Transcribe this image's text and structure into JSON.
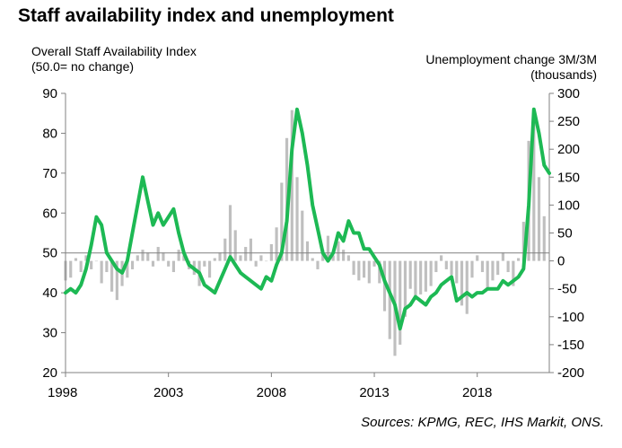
{
  "title": "Staff availability index and unemployment",
  "left_axis_label": [
    "Overall Staff Availability Index",
    "(50.0= no change)"
  ],
  "right_axis_label": [
    "Unemployment  change 3M/3M",
    "(thousands)"
  ],
  "source": "Sources: KPMG, REC, IHS Markit, ONS.",
  "colors": {
    "line": "#1db954",
    "bars": "#bfbfbf",
    "axis": "#808080"
  },
  "chart_data": {
    "type": "line+bar",
    "title": "Staff availability index and unemployment",
    "x_ticks": [
      "1998",
      "2003",
      "2008",
      "2013",
      "2018"
    ],
    "x_tick_values": [
      1998,
      2003,
      2008,
      2013,
      2018
    ],
    "xlim": [
      1998,
      2021.5
    ],
    "y_left": {
      "label": "Overall Staff Availability Index (50.0= no change)",
      "lim": [
        20,
        90
      ],
      "ticks": [
        20,
        30,
        40,
        50,
        60,
        70,
        80,
        90
      ]
    },
    "y_right": {
      "label": "Unemployment  change 3M/3M (thousands)",
      "lim": [
        -200,
        300
      ],
      "ticks": [
        -200,
        -150,
        -100,
        -50,
        0,
        50,
        100,
        150,
        200,
        250,
        300
      ]
    },
    "series": [
      {
        "kind": "line",
        "axis": "left",
        "x": [
          1998,
          1998.25,
          1998.5,
          1998.75,
          1999,
          1999.25,
          1999.5,
          1999.75,
          2000,
          2000.25,
          2000.5,
          2000.75,
          2001,
          2001.25,
          2001.5,
          2001.75,
          2002,
          2002.25,
          2002.5,
          2002.75,
          2003,
          2003.25,
          2003.5,
          2003.75,
          2004,
          2004.25,
          2004.5,
          2004.75,
          2005,
          2005.25,
          2005.5,
          2005.75,
          2006,
          2006.25,
          2006.5,
          2006.75,
          2007,
          2007.25,
          2007.5,
          2007.75,
          2008,
          2008.25,
          2008.5,
          2008.75,
          2009,
          2009.25,
          2009.5,
          2009.75,
          2010,
          2010.25,
          2010.5,
          2010.75,
          2011,
          2011.25,
          2011.5,
          2011.75,
          2012,
          2012.25,
          2012.5,
          2012.75,
          2013,
          2013.25,
          2013.5,
          2013.75,
          2014,
          2014.25,
          2014.5,
          2014.75,
          2015,
          2015.25,
          2015.5,
          2015.75,
          2016,
          2016.25,
          2016.5,
          2016.75,
          2017,
          2017.25,
          2017.5,
          2017.75,
          2018,
          2018.25,
          2018.5,
          2018.75,
          2019,
          2019.25,
          2019.5,
          2019.75,
          2020,
          2020.25,
          2020.5,
          2020.75,
          2021,
          2021.25,
          2021.5
        ],
        "values": [
          40,
          41,
          40,
          42,
          46,
          52,
          59,
          57,
          50,
          48,
          46,
          45,
          48,
          55,
          62,
          69,
          63,
          57,
          60,
          57,
          59,
          61,
          55,
          50,
          47,
          46,
          45,
          42,
          41,
          40,
          43,
          46,
          49,
          47,
          45,
          44,
          43,
          42,
          41,
          44,
          43,
          47,
          50,
          58,
          76,
          86,
          80,
          72,
          62,
          56,
          50,
          48,
          50,
          55,
          53,
          58,
          55,
          55,
          51,
          51,
          49,
          47,
          43,
          40,
          37,
          31,
          36,
          37,
          39,
          38,
          37,
          39,
          40,
          42,
          43,
          44,
          38,
          39,
          40,
          39,
          40,
          40,
          41,
          41,
          41,
          43,
          42,
          43,
          44,
          46,
          62,
          86,
          80,
          72,
          70
        ]
      },
      {
        "kind": "bar",
        "axis": "right",
        "x": [
          1998,
          1998.25,
          1998.5,
          1998.75,
          1999,
          1999.25,
          1999.5,
          1999.75,
          2000,
          2000.25,
          2000.5,
          2000.75,
          2001,
          2001.25,
          2001.5,
          2001.75,
          2002,
          2002.25,
          2002.5,
          2002.75,
          2003,
          2003.25,
          2003.5,
          2003.75,
          2004,
          2004.25,
          2004.5,
          2004.75,
          2005,
          2005.25,
          2005.5,
          2005.75,
          2006,
          2006.25,
          2006.5,
          2006.75,
          2007,
          2007.25,
          2007.5,
          2007.75,
          2008,
          2008.25,
          2008.5,
          2008.75,
          2009,
          2009.25,
          2009.5,
          2009.75,
          2010,
          2010.25,
          2010.5,
          2010.75,
          2011,
          2011.25,
          2011.5,
          2011.75,
          2012,
          2012.25,
          2012.5,
          2012.75,
          2013,
          2013.25,
          2013.5,
          2013.75,
          2014,
          2014.25,
          2014.5,
          2014.75,
          2015,
          2015.25,
          2015.5,
          2015.75,
          2016,
          2016.25,
          2016.5,
          2016.75,
          2017,
          2017.25,
          2017.5,
          2017.75,
          2018,
          2018.25,
          2018.5,
          2018.75,
          2019,
          2019.25,
          2019.5,
          2019.75,
          2020,
          2020.25,
          2020.5,
          2020.75,
          2021,
          2021.25
        ],
        "values": [
          -35,
          -30,
          5,
          -20,
          10,
          -15,
          0,
          -40,
          -20,
          -55,
          -70,
          -45,
          -30,
          -15,
          10,
          20,
          15,
          -10,
          25,
          15,
          -10,
          -20,
          20,
          10,
          -15,
          -25,
          -45,
          -10,
          -30,
          5,
          15,
          40,
          100,
          55,
          10,
          25,
          40,
          -10,
          10,
          0,
          30,
          60,
          140,
          220,
          270,
          150,
          90,
          35,
          5,
          -15,
          20,
          45,
          10,
          35,
          20,
          10,
          -25,
          -35,
          -30,
          -40,
          -10,
          -40,
          -90,
          -140,
          -170,
          -150,
          -100,
          -50,
          -70,
          -60,
          -55,
          -45,
          -20,
          10,
          -15,
          -25,
          -40,
          -80,
          -95,
          -30,
          10,
          -20,
          -50,
          -35,
          -25,
          15,
          -20,
          -45,
          5,
          70,
          215,
          265,
          150,
          80
        ]
      }
    ],
    "grid": false,
    "reference_line": {
      "axis": "left",
      "value": 50
    },
    "legend": "none"
  }
}
